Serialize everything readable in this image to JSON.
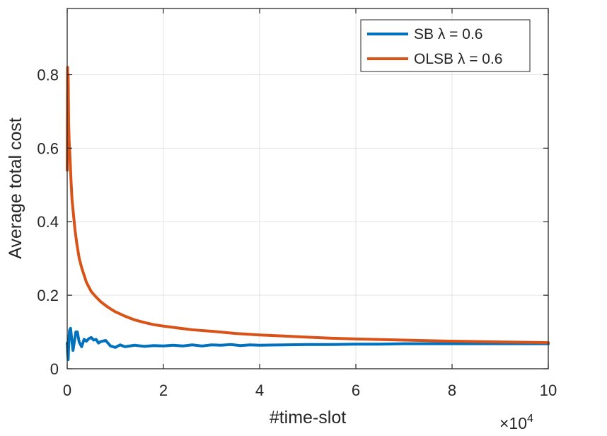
{
  "chart_data": {
    "type": "line",
    "xlabel": "#time-slot",
    "ylabel": "Average total cost",
    "x_exponent_label": "×10",
    "x_exponent_power": "4",
    "xlim": [
      0,
      100000
    ],
    "ylim": [
      0,
      0.98
    ],
    "x_ticks": [
      0,
      20000,
      40000,
      60000,
      80000,
      100000
    ],
    "x_tick_labels": [
      "0",
      "2",
      "4",
      "6",
      "8",
      "10"
    ],
    "y_ticks": [
      0,
      0.2,
      0.4,
      0.6,
      0.8
    ],
    "y_tick_labels": [
      "0",
      "0.2",
      "0.4",
      "0.6",
      "0.8"
    ],
    "grid": true,
    "legend_position": "top-right",
    "series": [
      {
        "name": "SB  λ = 0.6",
        "color": "#0072BD",
        "x": [
          0,
          100,
          200,
          300,
          400,
          500,
          700,
          900,
          1200,
          1500,
          1800,
          2100,
          2500,
          3000,
          3500,
          4000,
          4500,
          5000,
          5500,
          6000,
          6500,
          7000,
          8000,
          9000,
          10000,
          11000,
          12000,
          14000,
          16000,
          18000,
          20000,
          22000,
          24000,
          26000,
          28000,
          30000,
          32000,
          34000,
          36000,
          38000,
          40000,
          45000,
          50000,
          55000,
          60000,
          65000,
          70000,
          75000,
          80000,
          85000,
          90000,
          95000,
          100000
        ],
        "y": [
          0.07,
          0.04,
          0.025,
          0.06,
          0.09,
          0.105,
          0.11,
          0.085,
          0.05,
          0.075,
          0.1,
          0.1,
          0.072,
          0.06,
          0.08,
          0.075,
          0.082,
          0.085,
          0.078,
          0.08,
          0.07,
          0.074,
          0.077,
          0.062,
          0.058,
          0.065,
          0.06,
          0.064,
          0.061,
          0.063,
          0.062,
          0.064,
          0.062,
          0.065,
          0.062,
          0.065,
          0.064,
          0.066,
          0.063,
          0.065,
          0.064,
          0.065,
          0.066,
          0.066,
          0.067,
          0.067,
          0.068,
          0.068,
          0.068,
          0.068,
          0.068,
          0.068,
          0.068
        ]
      },
      {
        "name": "OLSB  λ = 0.6",
        "color": "#D95319",
        "x": [
          0,
          80,
          150,
          200,
          300,
          400,
          600,
          800,
          1000,
          1300,
          1600,
          2000,
          2500,
          3000,
          3500,
          4000,
          5000,
          6000,
          7000,
          8000,
          9000,
          10000,
          12000,
          14000,
          16000,
          18000,
          20000,
          23000,
          26000,
          30000,
          35000,
          40000,
          45000,
          50000,
          55000,
          60000,
          70000,
          80000,
          90000,
          100000
        ],
        "y": [
          0.54,
          0.82,
          0.71,
          0.8,
          0.67,
          0.62,
          0.57,
          0.51,
          0.46,
          0.42,
          0.38,
          0.34,
          0.3,
          0.275,
          0.255,
          0.235,
          0.21,
          0.195,
          0.182,
          0.172,
          0.163,
          0.155,
          0.143,
          0.133,
          0.126,
          0.12,
          0.116,
          0.111,
          0.106,
          0.102,
          0.096,
          0.092,
          0.089,
          0.086,
          0.083,
          0.081,
          0.078,
          0.075,
          0.073,
          0.071
        ]
      }
    ]
  }
}
